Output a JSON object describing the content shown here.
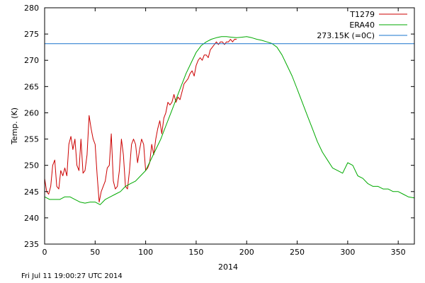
{
  "footer": {
    "timestamp": "Fri Jul 11 19:00:27 UTC 2014"
  },
  "chart_data": {
    "type": "line",
    "title": "",
    "xlabel": "2014",
    "ylabel": "Temp. (K)",
    "xlim": [
      0,
      366
    ],
    "ylim": [
      235,
      280
    ],
    "xticks": [
      0,
      50,
      100,
      150,
      200,
      250,
      300,
      350
    ],
    "yticks": [
      235,
      240,
      245,
      250,
      255,
      260,
      265,
      270,
      275,
      280
    ],
    "grid": false,
    "legend_position": "top-right",
    "series": [
      {
        "name": "T1279",
        "color": "#cc0000",
        "x": [
          0,
          2,
          4,
          6,
          8,
          10,
          12,
          14,
          16,
          18,
          20,
          22,
          24,
          26,
          28,
          30,
          32,
          34,
          36,
          38,
          40,
          42,
          44,
          46,
          48,
          50,
          52,
          54,
          56,
          58,
          60,
          62,
          64,
          66,
          68,
          70,
          72,
          74,
          76,
          78,
          80,
          82,
          84,
          86,
          88,
          90,
          92,
          94,
          96,
          98,
          100,
          102,
          104,
          106,
          108,
          110,
          112,
          114,
          116,
          118,
          120,
          122,
          124,
          126,
          128,
          130,
          132,
          134,
          136,
          138,
          140,
          142,
          144,
          146,
          148,
          150,
          152,
          154,
          156,
          158,
          160,
          162,
          164,
          166,
          168,
          170,
          172,
          174,
          176,
          178,
          180,
          182,
          184,
          186,
          188,
          190
        ],
        "values": [
          247.5,
          245,
          244.5,
          246,
          250,
          251,
          246,
          245.5,
          249,
          248,
          249.5,
          248,
          254,
          255.5,
          253,
          255,
          250,
          249,
          255,
          248.5,
          249,
          252,
          259.5,
          257,
          255,
          254,
          248,
          243,
          245,
          246,
          247,
          249.5,
          250,
          256,
          247,
          245.5,
          246,
          249,
          255,
          252,
          246,
          245.5,
          249,
          254,
          255,
          254,
          250.5,
          253,
          255,
          254,
          249,
          249.5,
          250.5,
          254,
          252,
          255,
          257,
          258.5,
          256,
          259,
          260,
          262,
          261.5,
          262,
          263.5,
          262,
          263,
          262.5,
          264,
          265.5,
          266,
          266.5,
          267.5,
          268,
          267,
          269,
          270,
          270.5,
          270,
          271,
          271,
          270.5,
          272,
          272.5,
          273,
          273.5,
          273,
          273.5,
          273.5,
          273,
          273.5,
          273.5,
          274,
          273.5,
          274,
          274
        ]
      },
      {
        "name": "ERA40",
        "color": "#00aa00",
        "x": [
          0,
          5,
          10,
          15,
          20,
          25,
          30,
          35,
          40,
          45,
          50,
          55,
          60,
          65,
          70,
          75,
          80,
          85,
          90,
          95,
          100,
          105,
          110,
          115,
          120,
          125,
          130,
          135,
          140,
          145,
          150,
          155,
          160,
          165,
          170,
          175,
          180,
          185,
          190,
          195,
          200,
          205,
          210,
          215,
          220,
          225,
          230,
          235,
          240,
          245,
          250,
          255,
          260,
          265,
          270,
          275,
          280,
          285,
          290,
          295,
          300,
          305,
          310,
          315,
          320,
          325,
          330,
          335,
          340,
          345,
          350,
          355,
          360,
          366
        ],
        "values": [
          244,
          243.5,
          243.5,
          243.5,
          244,
          244,
          243.5,
          243,
          242.8,
          243,
          243,
          242.5,
          243.5,
          244,
          244.5,
          245,
          246,
          246.5,
          247,
          248,
          249,
          251,
          253,
          255,
          257.5,
          260,
          262.5,
          265,
          267.5,
          269.5,
          271.5,
          272.8,
          273.5,
          274,
          274.3,
          274.5,
          274.5,
          274.4,
          274.3,
          274.4,
          274.5,
          274.3,
          274,
          273.8,
          273.5,
          273.2,
          272.5,
          271,
          269,
          267,
          264.5,
          262,
          259.5,
          257,
          254.5,
          252.5,
          251,
          249.5,
          249,
          248.5,
          250.5,
          250,
          248,
          247.5,
          246.5,
          246,
          246,
          245.5,
          245.5,
          245,
          245,
          244.5,
          244,
          243.8
        ]
      },
      {
        "name": "273.15K (=0C)",
        "color": "#1874cd",
        "x": [
          0,
          366
        ],
        "values": [
          273.15,
          273.15
        ]
      }
    ]
  }
}
